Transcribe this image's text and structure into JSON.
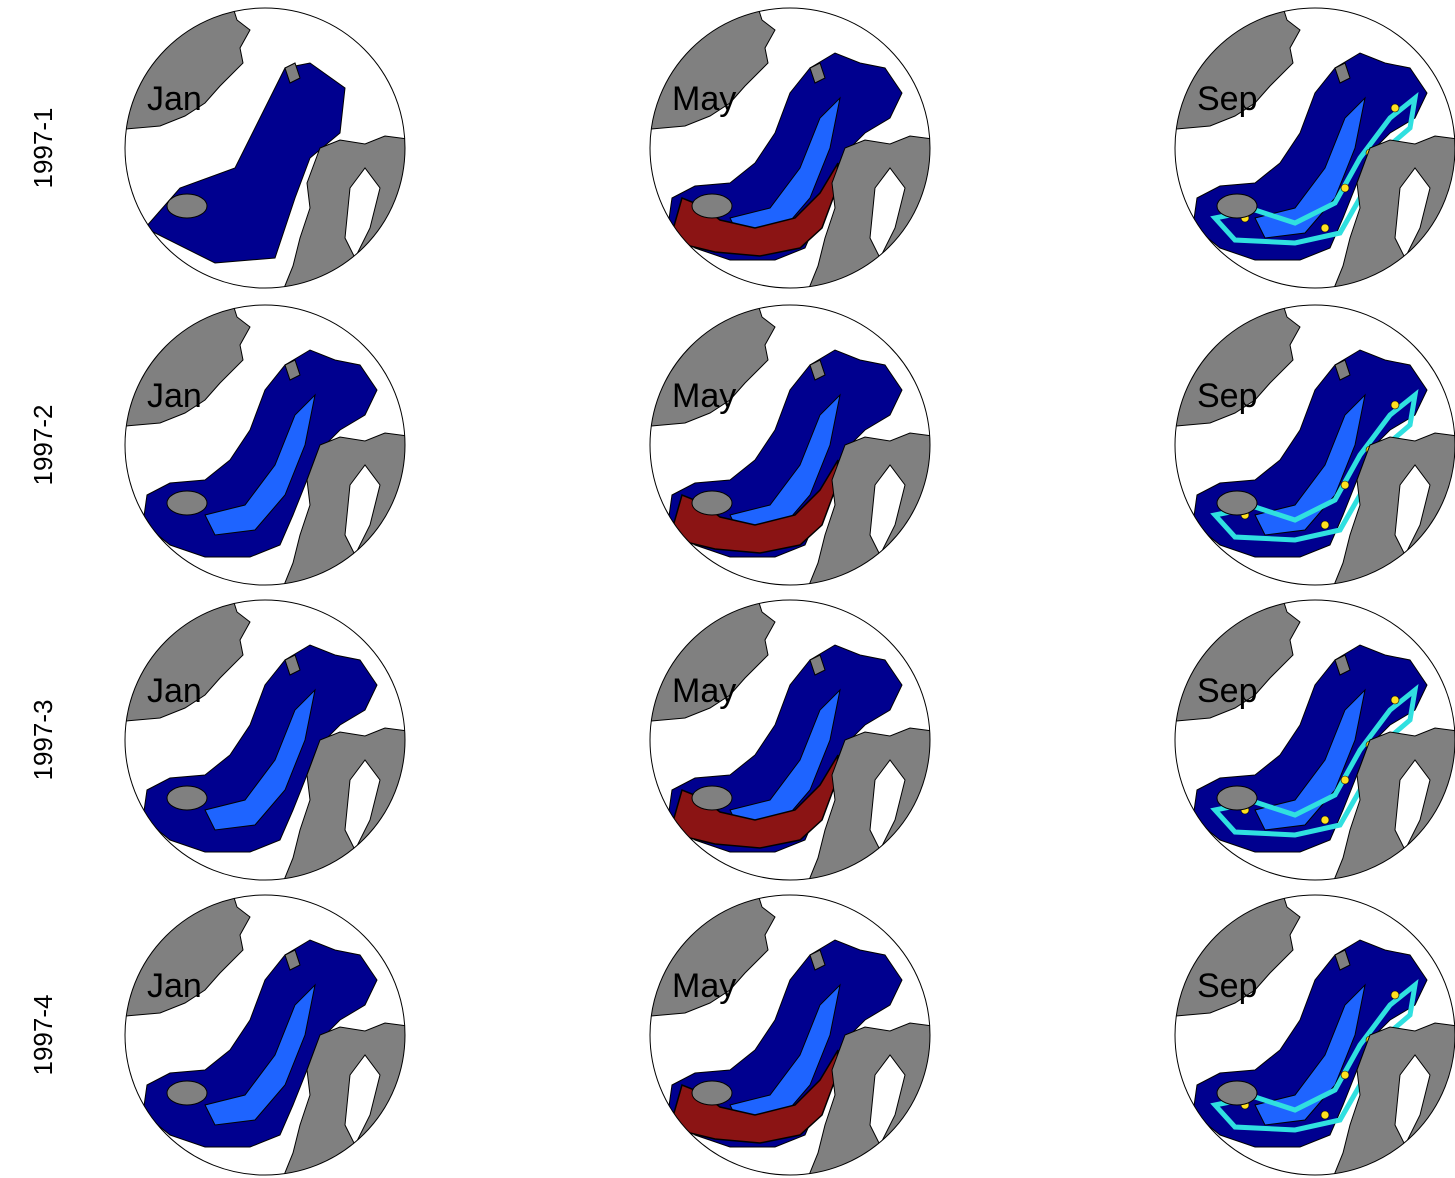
{
  "rows": [
    {
      "label": "1997-1",
      "panels": [
        "Jan",
        "May",
        "Sep"
      ]
    },
    {
      "label": "1997-2",
      "panels": [
        "Jan",
        "May",
        "Sep"
      ]
    },
    {
      "label": "1997-3",
      "panels": [
        "Jan",
        "May",
        "Sep"
      ]
    },
    {
      "label": "1997-4",
      "panels": [
        "Jan",
        "May",
        "Sep"
      ]
    }
  ]
}
